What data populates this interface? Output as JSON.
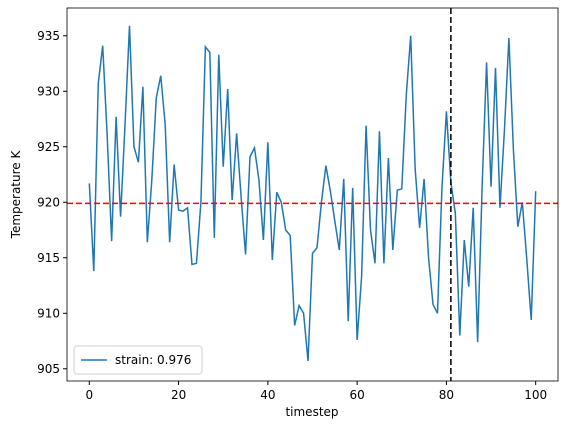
{
  "chart_data": {
    "type": "line",
    "x_label": "timestep",
    "y_label": "Temperature K",
    "x": [
      0,
      1,
      2,
      3,
      4,
      5,
      6,
      7,
      8,
      9,
      10,
      11,
      12,
      13,
      14,
      15,
      16,
      17,
      18,
      19,
      20,
      21,
      22,
      23,
      24,
      25,
      26,
      27,
      28,
      29,
      30,
      31,
      32,
      33,
      34,
      35,
      36,
      37,
      38,
      39,
      40,
      41,
      42,
      43,
      44,
      45,
      46,
      47,
      48,
      49,
      50,
      51,
      52,
      53,
      54,
      55,
      56,
      57,
      58,
      59,
      60,
      61,
      62,
      63,
      64,
      65,
      66,
      67,
      68,
      69,
      70,
      71,
      72,
      73,
      74,
      75,
      76,
      77,
      78,
      79,
      80,
      81,
      82,
      83,
      84,
      85,
      86,
      87,
      88,
      89,
      90,
      91,
      92,
      93,
      94,
      95,
      96,
      97,
      98,
      99,
      100
    ],
    "series": [
      {
        "name": "strain: 0.976",
        "color": "#1f77b4",
        "values": [
          921.7,
          913.8,
          930.7,
          934.1,
          926,
          916.5,
          927.7,
          918.7,
          927,
          935.9,
          925,
          923.6,
          930.4,
          916.4,
          922,
          929.4,
          931.4,
          927,
          916.4,
          923.4,
          919.3,
          919.2,
          919.5,
          914.4,
          914.5,
          920,
          934,
          933.5,
          916.8,
          933.3,
          923.2,
          930.2,
          920.2,
          926.2,
          920.5,
          915.3,
          924.1,
          924.9,
          922,
          916.6,
          925.4,
          914.8,
          920.9,
          920,
          917.5,
          917,
          908.9,
          910.7,
          910,
          905.7,
          915.4,
          915.9,
          920,
          923.3,
          921,
          918.3,
          915.7,
          922.1,
          909.3,
          921.3,
          907.6,
          913.3,
          926.9,
          917.5,
          914.5,
          926.4,
          914.5,
          924,
          915.7,
          921.1,
          921.2,
          929.6,
          935,
          923,
          917.7,
          922.1,
          915,
          910.8,
          910,
          921.3,
          928.2,
          921.8,
          919,
          908,
          916.6,
          912.4,
          919.5,
          907.4,
          921.4,
          932.6,
          921.4,
          932.1,
          919.5,
          926.5,
          934.8,
          924.8,
          917.8,
          920,
          914.9,
          909.4,
          921
        ]
      }
    ],
    "hline": {
      "value": 919.9,
      "color": "#ff0000"
    },
    "vline": {
      "value": 81,
      "color": "#000000"
    },
    "xlim": [
      -5,
      105
    ],
    "ylim": [
      903.9,
      937.5
    ],
    "xticks": [
      0,
      20,
      40,
      60,
      80,
      100
    ],
    "yticks": [
      905,
      910,
      915,
      920,
      925,
      930,
      935
    ],
    "legend": "lower left"
  }
}
